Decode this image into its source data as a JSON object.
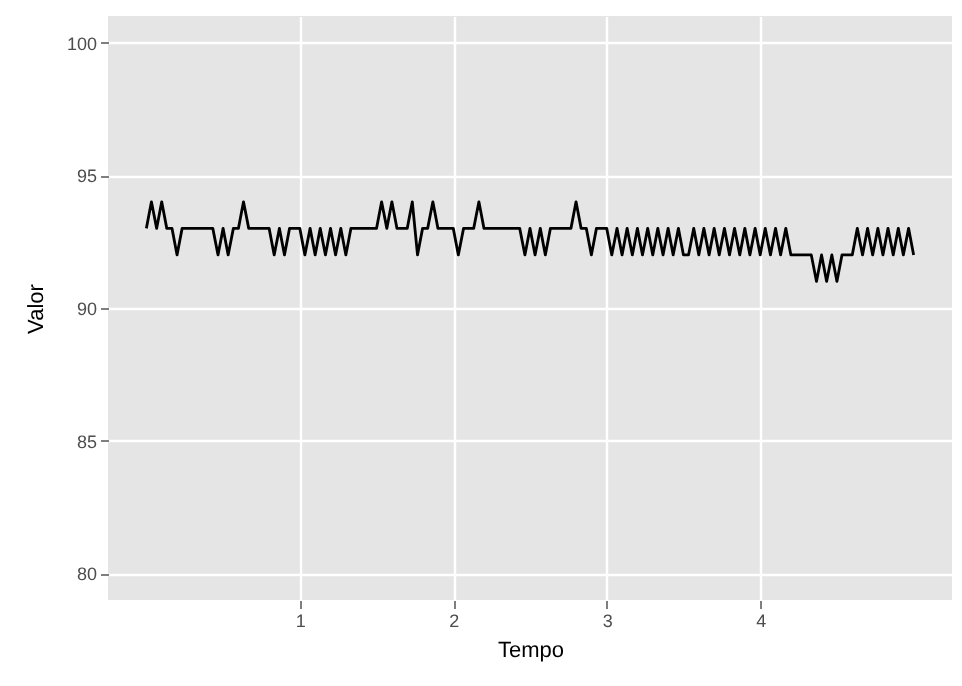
{
  "chart_data": {
    "type": "line",
    "xlabel": "Tempo",
    "ylabel": "Valor",
    "x": [
      0,
      0.033,
      0.067,
      0.1,
      0.133,
      0.167,
      0.2,
      0.233,
      0.267,
      0.3,
      0.333,
      0.367,
      0.4,
      0.433,
      0.467,
      0.5,
      0.533,
      0.567,
      0.6,
      0.633,
      0.667,
      0.7,
      0.733,
      0.767,
      0.8,
      0.833,
      0.867,
      0.9,
      0.933,
      0.967,
      1,
      1.033,
      1.067,
      1.1,
      1.133,
      1.167,
      1.2,
      1.233,
      1.267,
      1.3,
      1.333,
      1.367,
      1.4,
      1.433,
      1.467,
      1.5,
      1.533,
      1.567,
      1.6,
      1.633,
      1.667,
      1.7,
      1.733,
      1.767,
      1.8,
      1.833,
      1.867,
      1.9,
      1.933,
      1.967,
      2,
      2.033,
      2.067,
      2.1,
      2.133,
      2.167,
      2.2,
      2.233,
      2.267,
      2.3,
      2.333,
      2.367,
      2.4,
      2.433,
      2.467,
      2.5,
      2.533,
      2.567,
      2.6,
      2.633,
      2.667,
      2.7,
      2.733,
      2.767,
      2.8,
      2.833,
      2.867,
      2.9,
      2.933,
      2.967,
      3,
      3.033,
      3.067,
      3.1,
      3.133,
      3.167,
      3.2,
      3.233,
      3.267,
      3.3,
      3.333,
      3.367,
      3.4,
      3.433,
      3.467,
      3.5,
      3.533,
      3.567,
      3.6,
      3.633,
      3.667,
      3.7,
      3.733,
      3.767,
      3.8,
      3.833,
      3.867,
      3.9,
      3.933,
      3.967,
      4,
      4.033,
      4.067,
      4.1,
      4.133,
      4.167,
      4.2,
      4.233,
      4.267,
      4.3,
      4.333,
      4.367,
      4.4,
      4.433,
      4.467,
      4.5,
      4.533,
      4.567,
      4.6,
      4.633,
      4.667,
      4.7,
      4.733,
      4.767,
      4.8,
      4.833,
      4.867,
      4.9,
      4.933,
      4.967,
      5
    ],
    "series": [
      {
        "color": "#000000",
        "values": [
          93,
          94,
          93,
          94,
          93,
          93,
          92,
          93,
          93,
          93,
          93,
          93,
          93,
          93,
          92,
          93,
          92,
          93,
          93,
          94,
          93,
          93,
          93,
          93,
          93,
          92,
          93,
          92,
          93,
          93,
          93,
          92,
          93,
          92,
          93,
          92,
          93,
          92,
          93,
          92,
          93,
          93,
          93,
          93,
          93,
          93,
          94,
          93,
          94,
          93,
          93,
          93,
          94,
          92,
          93,
          93,
          94,
          93,
          93,
          93,
          93,
          92,
          93,
          93,
          93,
          94,
          93,
          93,
          93,
          93,
          93,
          93,
          93,
          93,
          92,
          93,
          92,
          93,
          92,
          93,
          93,
          93,
          93,
          93,
          94,
          93,
          93,
          92,
          93,
          93,
          93,
          92,
          93,
          92,
          93,
          92,
          93,
          92,
          93,
          92,
          93,
          92,
          93,
          92,
          93,
          92,
          92,
          93,
          92,
          93,
          92,
          93,
          92,
          93,
          92,
          93,
          92,
          93,
          92,
          93,
          92,
          93,
          92,
          93,
          92,
          93,
          92,
          92,
          92,
          92,
          92,
          91,
          92,
          91,
          92,
          91,
          92,
          92,
          92,
          93,
          92,
          93,
          92,
          93,
          92,
          93,
          92,
          93,
          92,
          93,
          92
        ]
      }
    ],
    "xlim": [
      -0.25,
      5.25
    ],
    "xticks": [
      1,
      2,
      3,
      4
    ],
    "ylim": [
      79,
      101
    ],
    "yticks": [
      80,
      85,
      90,
      95,
      100
    ],
    "grid": true,
    "marker": "none",
    "line_style": "solid"
  }
}
